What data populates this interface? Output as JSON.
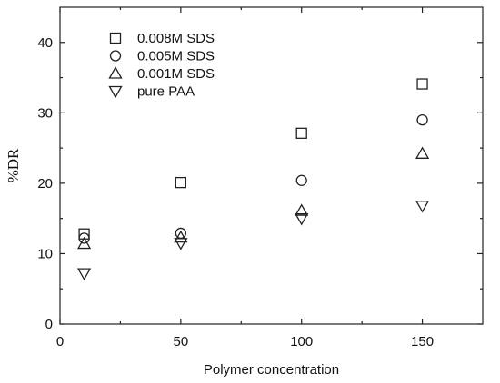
{
  "chart_data": {
    "type": "scatter",
    "xlabel": "Polymer concentration",
    "ylabel": "%DR",
    "xlim": [
      0,
      175
    ],
    "ylim": [
      0,
      45
    ],
    "xticks": [
      0,
      50,
      100,
      150
    ],
    "yticks": [
      0,
      10,
      20,
      30,
      40
    ],
    "legend_position": "top-left",
    "grid": false,
    "series": [
      {
        "name": "0.008M SDS",
        "marker": "square",
        "x": [
          10,
          50,
          100,
          150
        ],
        "y": [
          12.8,
          20.1,
          27.1,
          34.1
        ]
      },
      {
        "name": "0.005M SDS",
        "marker": "circle",
        "x": [
          10,
          50,
          100,
          150
        ],
        "y": [
          12.2,
          12.9,
          20.4,
          29.0
        ]
      },
      {
        "name": "0.001M SDS",
        "marker": "triangle-up",
        "x": [
          10,
          50,
          100,
          150
        ],
        "y": [
          11.4,
          12.3,
          16.1,
          24.2
        ]
      },
      {
        "name": "pure PAA",
        "marker": "triangle-down",
        "x": [
          10,
          50,
          100,
          150
        ],
        "y": [
          7.2,
          11.5,
          15.0,
          16.8
        ]
      }
    ]
  }
}
